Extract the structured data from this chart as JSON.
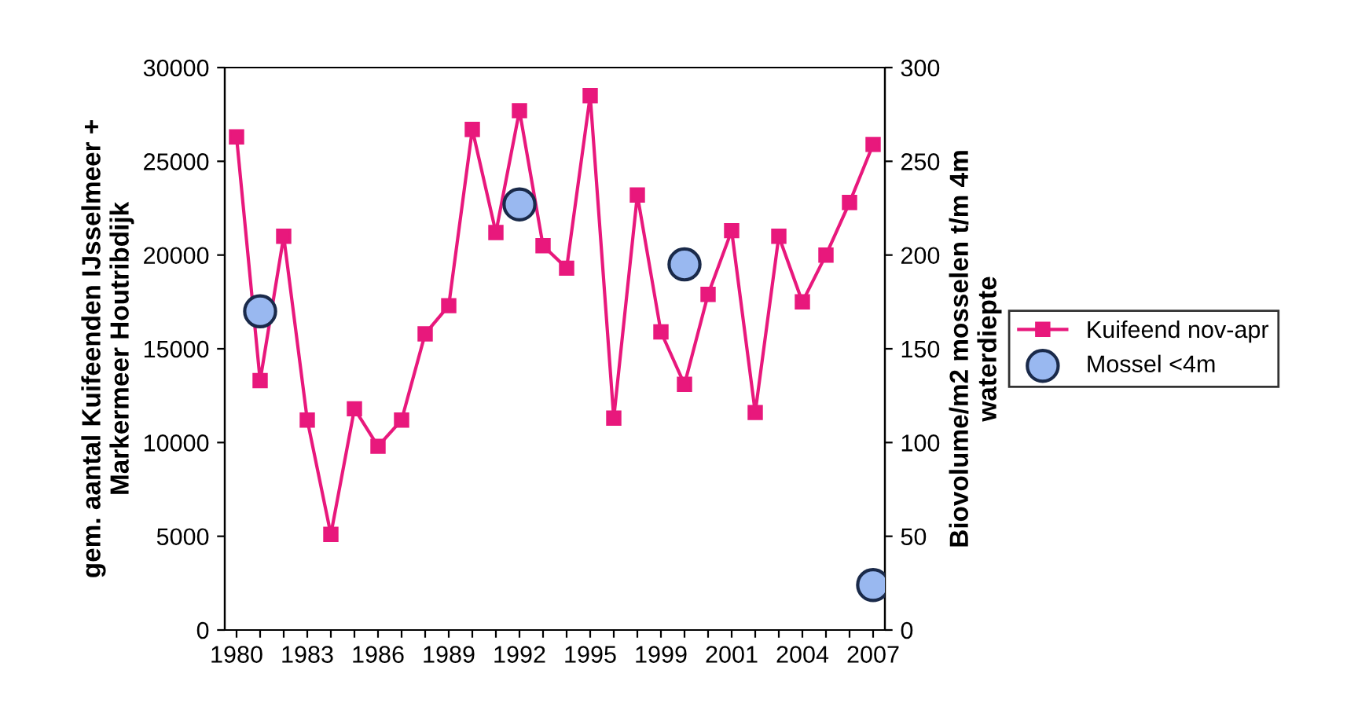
{
  "chart_data": {
    "type": "line",
    "ylabel": "gem. aantal Kuifeenden IJsselmeer +\nMarkermeer Houtribdijk",
    "y2label": "Biovolume/m2 mosselen t/m 4m\nwaterdiepte",
    "categories": [
      "1980",
      null,
      null,
      "1983",
      null,
      null,
      "1986",
      null,
      null,
      "1989",
      null,
      null,
      "1992",
      null,
      null,
      "1995",
      null,
      null,
      "1999",
      null,
      null,
      "2001",
      null,
      null,
      "2004",
      null,
      null,
      "2007"
    ],
    "series": [
      {
        "name": "Kuifeend nov-apr",
        "color": "#e8187c",
        "marker": "square",
        "values": [
          26300,
          13300,
          21000,
          11200,
          5100,
          11800,
          9800,
          11200,
          15800,
          17300,
          26700,
          21200,
          27700,
          20500,
          19300,
          28500,
          11300,
          23200,
          15900,
          13100,
          17900,
          21300,
          11600,
          21000,
          17500,
          20000,
          22800,
          25900
        ]
      },
      {
        "name": "Mossel <4m",
        "type": "scatter",
        "axis": "y2",
        "color": "#99b8f0",
        "marker": "circle",
        "values": [
          null,
          170,
          null,
          null,
          null,
          null,
          null,
          null,
          null,
          null,
          null,
          null,
          227,
          null,
          null,
          null,
          null,
          null,
          null,
          195,
          null,
          null,
          null,
          null,
          null,
          null,
          null,
          24
        ]
      }
    ],
    "ylim": [
      0,
      30000
    ],
    "yticks": [
      0,
      5000,
      10000,
      15000,
      20000,
      25000,
      30000
    ],
    "y2lim": [
      0,
      300
    ],
    "y2ticks": [
      0,
      50,
      100,
      150,
      200,
      250,
      300
    ],
    "grid": false,
    "legend": "right"
  }
}
